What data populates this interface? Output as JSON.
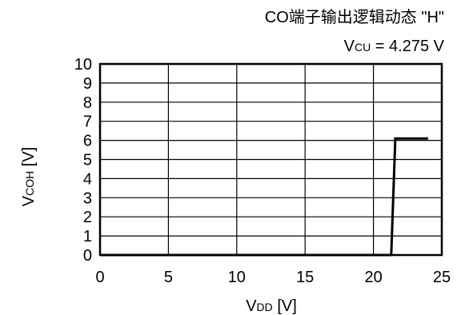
{
  "chart_data": {
    "type": "line",
    "title": "CO端子输出逻辑动态 \"H\"",
    "subtitle": {
      "main": "V",
      "sub": "CU",
      "rest": " = 4.275 V"
    },
    "xlabel": {
      "main": "V",
      "sub": "DD",
      "unit": " [V]"
    },
    "ylabel": {
      "main": "V",
      "sub": "COH",
      "unit": " [V]"
    },
    "xlim": [
      0,
      25
    ],
    "ylim": [
      0,
      10
    ],
    "x_ticks": [
      0,
      5,
      10,
      15,
      20,
      25
    ],
    "y_ticks": [
      0,
      1,
      2,
      3,
      4,
      5,
      6,
      7,
      8,
      9,
      10
    ],
    "grid": true,
    "series": [
      {
        "x": [
          0,
          21.3,
          21.3,
          21.6,
          24.0
        ],
        "y": [
          0,
          0,
          0,
          6.1,
          6.1
        ],
        "color": "#000000"
      }
    ]
  }
}
